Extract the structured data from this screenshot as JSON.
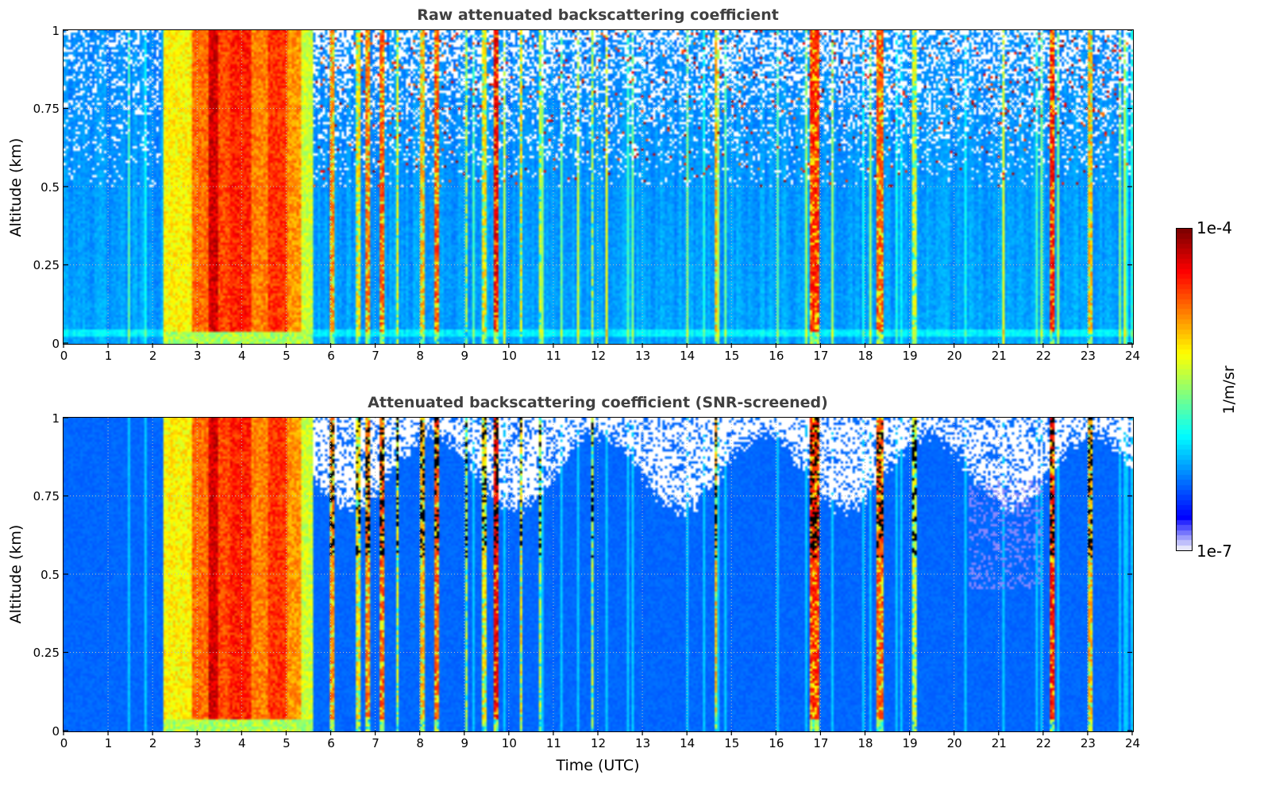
{
  "chart_data": [
    {
      "type": "heatmap",
      "title": "Raw attenuated backscattering coefficient",
      "xlabel": "",
      "ylabel": "Altitude (km)",
      "xlim": [
        0,
        24
      ],
      "ylim": [
        0,
        1
      ],
      "x_ticks": [
        "0",
        "1",
        "2",
        "3",
        "4",
        "5",
        "6",
        "7",
        "8",
        "9",
        "10",
        "11",
        "12",
        "13",
        "14",
        "15",
        "16",
        "17",
        "18",
        "19",
        "20",
        "21",
        "22",
        "23",
        "24"
      ],
      "y_ticks": [
        {
          "value": 0,
          "label": "0"
        },
        {
          "value": 0.25,
          "label": "0.25"
        },
        {
          "value": 0.5,
          "label": "0.5"
        },
        {
          "value": 0.75,
          "label": "0.75"
        },
        {
          "value": 1,
          "label": "1"
        }
      ],
      "grid": true,
      "screened": false
    },
    {
      "type": "heatmap",
      "title": "Attenuated backscattering coefficient (SNR-screened)",
      "xlabel": "Time (UTC)",
      "ylabel": "Altitude (km)",
      "xlim": [
        0,
        24
      ],
      "ylim": [
        0,
        1
      ],
      "x_ticks": [
        "0",
        "1",
        "2",
        "3",
        "4",
        "5",
        "6",
        "7",
        "8",
        "9",
        "10",
        "11",
        "12",
        "13",
        "14",
        "15",
        "16",
        "17",
        "18",
        "19",
        "20",
        "21",
        "22",
        "23",
        "24"
      ],
      "y_ticks": [
        {
          "value": 0,
          "label": "0"
        },
        {
          "value": 0.25,
          "label": "0.25"
        },
        {
          "value": 0.5,
          "label": "0.5"
        },
        {
          "value": 0.75,
          "label": "0.75"
        },
        {
          "value": 1,
          "label": "1"
        }
      ],
      "grid": true,
      "screened": true
    }
  ],
  "colorbar": {
    "label": "1/m/sr",
    "min_label": "1e-7",
    "max_label": "1e-4",
    "vmin": 1e-07,
    "vmax": 0.0001,
    "scale": "log",
    "colormap": "jet"
  },
  "intensity_events": [
    {
      "start": 2.25,
      "end": 2.9,
      "level": 0.68,
      "kind": "plume"
    },
    {
      "start": 2.9,
      "end": 3.25,
      "level": 0.82,
      "kind": "plume"
    },
    {
      "start": 3.25,
      "end": 3.45,
      "level": 0.97,
      "kind": "plume"
    },
    {
      "start": 3.45,
      "end": 3.75,
      "level": 0.86,
      "kind": "plume"
    },
    {
      "start": 3.75,
      "end": 4.2,
      "level": 0.9,
      "kind": "plume"
    },
    {
      "start": 4.2,
      "end": 4.6,
      "level": 0.8,
      "kind": "plume"
    },
    {
      "start": 4.6,
      "end": 5.0,
      "level": 0.88,
      "kind": "plume"
    },
    {
      "start": 5.0,
      "end": 5.35,
      "level": 0.78,
      "kind": "plume"
    },
    {
      "start": 5.35,
      "end": 5.6,
      "level": 0.62,
      "kind": "plume"
    },
    {
      "start": 6.0,
      "end": 6.08,
      "level": 0.8,
      "kind": "spike"
    },
    {
      "start": 6.55,
      "end": 6.65,
      "level": 0.7,
      "kind": "spike"
    },
    {
      "start": 6.8,
      "end": 6.9,
      "level": 0.82,
      "kind": "spike"
    },
    {
      "start": 7.1,
      "end": 7.2,
      "level": 0.85,
      "kind": "spike"
    },
    {
      "start": 7.45,
      "end": 7.52,
      "level": 0.65,
      "kind": "spike"
    },
    {
      "start": 8.0,
      "end": 8.1,
      "level": 0.75,
      "kind": "spike"
    },
    {
      "start": 8.3,
      "end": 8.4,
      "level": 0.85,
      "kind": "spike"
    },
    {
      "start": 9.0,
      "end": 9.05,
      "level": 0.6,
      "kind": "spike"
    },
    {
      "start": 9.4,
      "end": 9.5,
      "level": 0.7,
      "kind": "spike"
    },
    {
      "start": 9.65,
      "end": 9.75,
      "level": 0.95,
      "kind": "spike"
    },
    {
      "start": 10.25,
      "end": 10.3,
      "level": 0.7,
      "kind": "spike"
    },
    {
      "start": 10.65,
      "end": 10.72,
      "level": 0.62,
      "kind": "spike"
    },
    {
      "start": 11.85,
      "end": 11.9,
      "level": 0.6,
      "kind": "spike"
    },
    {
      "start": 14.6,
      "end": 14.66,
      "level": 0.75,
      "kind": "spike"
    },
    {
      "start": 16.75,
      "end": 16.95,
      "level": 0.9,
      "kind": "spike"
    },
    {
      "start": 18.25,
      "end": 18.4,
      "level": 0.85,
      "kind": "spike"
    },
    {
      "start": 19.05,
      "end": 19.12,
      "level": 0.65,
      "kind": "spike"
    },
    {
      "start": 22.15,
      "end": 22.25,
      "level": 0.92,
      "kind": "spike"
    },
    {
      "start": 23.0,
      "end": 23.1,
      "level": 0.75,
      "kind": "spike"
    }
  ]
}
